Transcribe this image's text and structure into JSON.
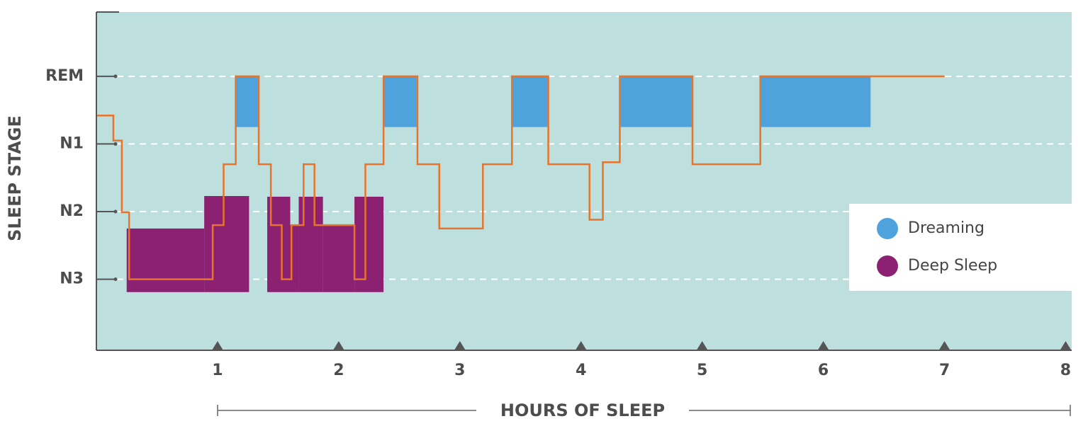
{
  "chart_data": {
    "type": "hypnogram",
    "y_label": "SLEEP STAGE",
    "x_label": "HOURS OF SLEEP",
    "xlim": [
      0,
      8.05
    ],
    "xticks": [
      1,
      2,
      3,
      4,
      5,
      6,
      7,
      8
    ],
    "ylim": [
      -1.05,
      3.95
    ],
    "yticks": [
      {
        "value": 0,
        "label": "N3"
      },
      {
        "value": 1,
        "label": "N2"
      },
      {
        "value": 2,
        "label": "N1"
      },
      {
        "value": 3,
        "label": "REM"
      }
    ],
    "grid": true,
    "legend": "right",
    "line": {
      "color": "#e8742c",
      "x": [
        0,
        0.14,
        0.21,
        0.27,
        0.96,
        1.05,
        1.15,
        1.34,
        1.44,
        1.53,
        1.61,
        1.71,
        1.8,
        2.13,
        2.22,
        2.37,
        2.65,
        2.83,
        3.19,
        3.43,
        3.73,
        4.07,
        4.18,
        4.32,
        4.92,
        5.48,
        7.0
      ],
      "values": [
        2.42,
        2.05,
        0.99,
        0,
        0.8,
        1.7,
        3,
        1.7,
        0.8,
        0,
        0.8,
        1.7,
        0.8,
        0,
        1.7,
        3,
        1.7,
        0.75,
        1.7,
        3,
        1.7,
        0.88,
        1.73,
        3,
        1.7,
        3,
        3
      ]
    },
    "series": [
      {
        "name": "Dreaming",
        "color": "#4ea3dc",
        "regions": [
          {
            "x": [
              1.15,
              1.34
            ],
            "y": [
              2.25,
              3
            ]
          },
          {
            "x": [
              2.37,
              2.65
            ],
            "y": [
              2.25,
              3
            ]
          },
          {
            "x": [
              3.43,
              3.73
            ],
            "y": [
              2.25,
              3
            ]
          },
          {
            "x": [
              4.32,
              4.92
            ],
            "y": [
              2.25,
              3
            ]
          },
          {
            "x": [
              5.48,
              6.39
            ],
            "y": [
              2.25,
              3
            ]
          }
        ]
      },
      {
        "name": "Deep Sleep",
        "color": "#8b2170",
        "regions": [
          {
            "x": [
              0.25,
              0.89
            ],
            "y": [
              -0.19,
              0.75
            ]
          },
          {
            "x": [
              0.89,
              1.26
            ],
            "y": [
              -0.19,
              1.23
            ]
          },
          {
            "x": [
              1.41,
              1.6
            ],
            "y": [
              -0.19,
              1.22
            ]
          },
          {
            "x": [
              1.6,
              1.67
            ],
            "y": [
              -0.19,
              0.8
            ]
          },
          {
            "x": [
              1.67,
              1.87
            ],
            "y": [
              -0.19,
              1.22
            ]
          },
          {
            "x": [
              1.87,
              2.13
            ],
            "y": [
              -0.19,
              0.8
            ]
          },
          {
            "x": [
              2.13,
              2.37
            ],
            "y": [
              -0.19,
              1.22
            ]
          }
        ]
      }
    ]
  }
}
